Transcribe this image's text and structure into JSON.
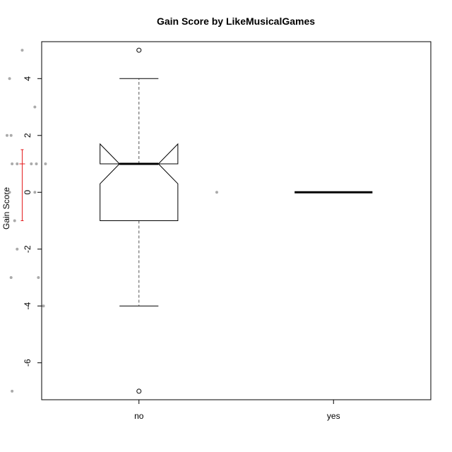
{
  "chart_data": {
    "type": "boxplot",
    "title": "Gain Score by LikeMusicalGames",
    "xlabel": "",
    "ylabel": "Gain Score",
    "categories": [
      "no",
      "yes"
    ],
    "ylim": [
      -7.3,
      5.3
    ],
    "y_ticks": [
      -6,
      -4,
      -2,
      0,
      2,
      4
    ],
    "notched": true,
    "groups": [
      {
        "name": "no",
        "whisker_low": -4,
        "q1": -1,
        "median": 1,
        "q3": 1,
        "whisker_high": 4,
        "notch_low": 0.3,
        "notch_high": 1.7,
        "outliers": [
          5,
          -7
        ],
        "mean_interval": [
          -1,
          1,
          1.5
        ],
        "jitter_points": [
          {
            "dx": 0.0,
            "y": 5
          },
          {
            "dx": -0.25,
            "y": 4
          },
          {
            "dx": 0.25,
            "y": 3
          },
          {
            "dx": -0.3,
            "y": 2
          },
          {
            "dx": -0.22,
            "y": 2
          },
          {
            "dx": -0.2,
            "y": 1
          },
          {
            "dx": -0.1,
            "y": 1
          },
          {
            "dx": 0.18,
            "y": 1
          },
          {
            "dx": 0.28,
            "y": 1
          },
          {
            "dx": 0.46,
            "y": 1
          },
          {
            "dx": -0.25,
            "y": 0
          },
          {
            "dx": 0.25,
            "y": 0
          },
          {
            "dx": -0.15,
            "y": -1
          },
          {
            "dx": -0.1,
            "y": -2
          },
          {
            "dx": -0.22,
            "y": -3
          },
          {
            "dx": 0.32,
            "y": -3
          },
          {
            "dx": 0.42,
            "y": -4
          },
          {
            "dx": -0.2,
            "y": -7
          }
        ]
      },
      {
        "name": "yes",
        "whisker_low": 0,
        "q1": 0,
        "median": 0,
        "q3": 0,
        "whisker_high": 0,
        "outliers": [],
        "jitter_points": [
          {
            "dx": 0.0,
            "y": 0
          }
        ]
      }
    ],
    "colors": {
      "points": "#aaaaaa",
      "mean_interval": "#e41a1c",
      "box": "#000000"
    }
  }
}
